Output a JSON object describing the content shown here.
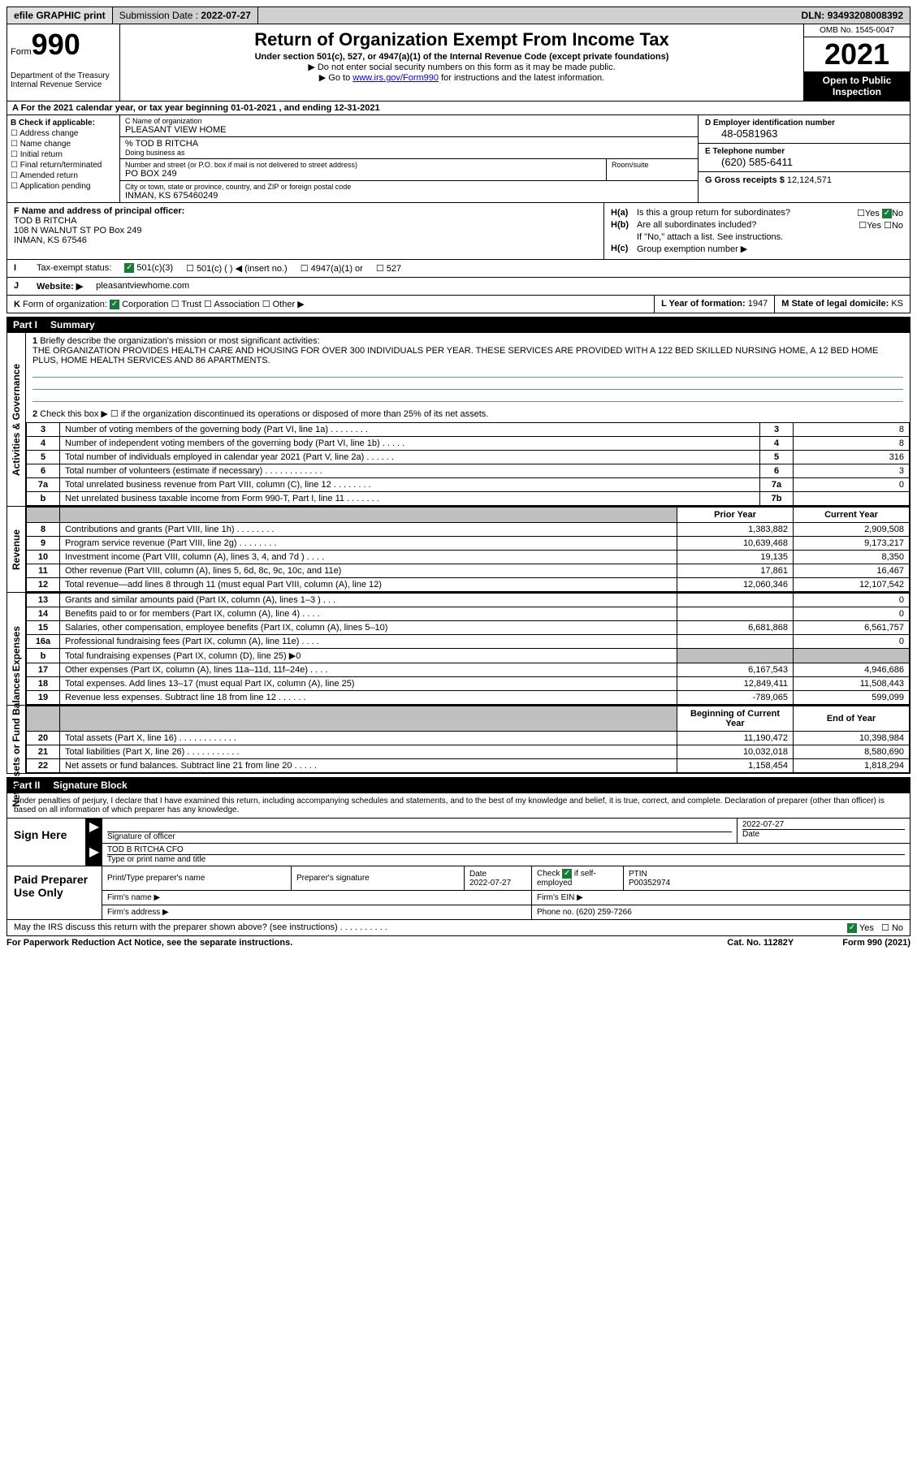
{
  "topbar": {
    "efile": "efile GRAPHIC print",
    "submission_label": "Submission Date :",
    "submission_date": "2022-07-27",
    "dln_label": "DLN:",
    "dln": "93493208008392"
  },
  "header": {
    "form_word": "Form",
    "form_num": "990",
    "dept": "Department of the Treasury\nInternal Revenue Service",
    "title": "Return of Organization Exempt From Income Tax",
    "sub1": "Under section 501(c), 527, or 4947(a)(1) of the Internal Revenue Code (except private foundations)",
    "sub2": "▶ Do not enter social security numbers on this form as it may be made public.",
    "sub3_pre": "▶ Go to ",
    "sub3_link": "www.irs.gov/Form990",
    "sub3_post": " for instructions and the latest information.",
    "omb": "OMB No. 1545-0047",
    "year": "2021",
    "inspect": "Open to Public Inspection"
  },
  "rowA": "A For the 2021 calendar year, or tax year beginning 01-01-2021   , and ending 12-31-2021",
  "sectionB": {
    "label": "B Check if applicable:",
    "opts": [
      "Address change",
      "Name change",
      "Initial return",
      "Final return/terminated",
      "Amended return",
      "Application pending"
    ]
  },
  "sectionC": {
    "name_label": "C Name of organization",
    "name": "PLEASANT VIEW HOME",
    "care_of": "% TOD B RITCHA",
    "dba_label": "Doing business as",
    "street_label": "Number and street (or P.O. box if mail is not delivered to street address)",
    "street": "PO BOX 249",
    "room_label": "Room/suite",
    "city_label": "City or town, state or province, country, and ZIP or foreign postal code",
    "city": "INMAN, KS  675460249"
  },
  "sectionD": {
    "ein_label": "D Employer identification number",
    "ein": "48-0581963",
    "phone_label": "E Telephone number",
    "phone": "(620) 585-6411",
    "gross_label": "G Gross receipts $",
    "gross": "12,124,571"
  },
  "sectionF": {
    "label": "F Name and address of principal officer:",
    "name": "TOD B RITCHA",
    "addr1": "108 N WALNUT ST PO Box 249",
    "addr2": "INMAN, KS  67546"
  },
  "sectionH": {
    "ha_label": "H(a)",
    "ha_text": "Is this a group return for subordinates?",
    "ha_yes": "Yes",
    "ha_no": "No",
    "hb_label": "H(b)",
    "hb_text": "Are all subordinates included?",
    "hb_note": "If \"No,\" attach a list. See instructions.",
    "hc_label": "H(c)",
    "hc_text": "Group exemption number ▶"
  },
  "rowI": {
    "lead": "I",
    "label": "Tax-exempt status:",
    "o1": "501(c)(3)",
    "o2": "501(c) (   ) ◀ (insert no.)",
    "o3": "4947(a)(1) or",
    "o4": "527"
  },
  "rowJ": {
    "lead": "J",
    "label": "Website: ▶",
    "val": "pleasantviewhome.com"
  },
  "rowK": {
    "lead": "K",
    "label": "Form of organization:",
    "o1": "Corporation",
    "o2": "Trust",
    "o3": "Association",
    "o4": "Other ▶",
    "l_label": "L Year of formation:",
    "l_val": "1947",
    "m_label": "M State of legal domicile:",
    "m_val": "KS"
  },
  "part1": {
    "part": "Part I",
    "title": "Summary",
    "q1_label": "1",
    "q1_text": "Briefly describe the organization's mission or most significant activities:",
    "q1_val": "THE ORGANIZATION PROVIDES HEALTH CARE AND HOUSING FOR OVER 300 INDIVIDUALS PER YEAR. THESE SERVICES ARE PROVIDED WITH A 122 BED SKILLED NURSING HOME, A 12 BED HOME PLUS, HOME HEALTH SERVICES AND 86 APARTMENTS.",
    "q2_text": "Check this box ▶ ☐  if the organization discontinued its operations or disposed of more than 25% of its net assets.",
    "governance_rows": [
      {
        "n": "3",
        "d": "Number of voting members of the governing body (Part VI, line 1a)   .    .    .    .    .    .    .    .",
        "box": "3",
        "v": "8"
      },
      {
        "n": "4",
        "d": "Number of independent voting members of the governing body (Part VI, line 1b)   .    .    .    .    .",
        "box": "4",
        "v": "8"
      },
      {
        "n": "5",
        "d": "Total number of individuals employed in calendar year 2021 (Part V, line 2a)   .    .    .    .    .    .",
        "box": "5",
        "v": "316"
      },
      {
        "n": "6",
        "d": "Total number of volunteers (estimate if necessary)   .    .    .    .    .    .    .    .    .    .    .    .",
        "box": "6",
        "v": "3"
      },
      {
        "n": "7a",
        "d": "Total unrelated business revenue from Part VIII, column (C), line 12   .    .    .    .    .    .    .    .",
        "box": "7a",
        "v": "0"
      },
      {
        "n": "b",
        "d": "Net unrelated business taxable income from Form 990-T, Part I, line 11   .    .    .    .    .    .    .",
        "box": "7b",
        "v": ""
      }
    ],
    "two_col_headers": {
      "prior": "Prior Year",
      "current": "Current Year"
    },
    "revenue_rows": [
      {
        "n": "8",
        "d": "Contributions and grants (Part VIII, line 1h)   .    .    .    .    .    .    .    .",
        "p": "1,383,882",
        "c": "2,909,508"
      },
      {
        "n": "9",
        "d": "Program service revenue (Part VIII, line 2g)   .    .    .    .    .    .    .    .",
        "p": "10,639,468",
        "c": "9,173,217"
      },
      {
        "n": "10",
        "d": "Investment income (Part VIII, column (A), lines 3, 4, and 7d )   .    .    .    .",
        "p": "19,135",
        "c": "8,350"
      },
      {
        "n": "11",
        "d": "Other revenue (Part VIII, column (A), lines 5, 6d, 8c, 9c, 10c, and 11e)",
        "p": "17,861",
        "c": "16,467"
      },
      {
        "n": "12",
        "d": "Total revenue—add lines 8 through 11 (must equal Part VIII, column (A), line 12)",
        "p": "12,060,346",
        "c": "12,107,542"
      }
    ],
    "expense_rows": [
      {
        "n": "13",
        "d": "Grants and similar amounts paid (Part IX, column (A), lines 1–3 )   .    .    .",
        "p": "",
        "c": "0"
      },
      {
        "n": "14",
        "d": "Benefits paid to or for members (Part IX, column (A), line 4)   .    .    .    .",
        "p": "",
        "c": "0"
      },
      {
        "n": "15",
        "d": "Salaries, other compensation, employee benefits (Part IX, column (A), lines 5–10)",
        "p": "6,681,868",
        "c": "6,561,757"
      },
      {
        "n": "16a",
        "d": "Professional fundraising fees (Part IX, column (A), line 11e)   .    .    .    .",
        "p": "",
        "c": "0"
      },
      {
        "n": "b",
        "d": "Total fundraising expenses (Part IX, column (D), line 25) ▶0",
        "p": "shade",
        "c": "shade"
      },
      {
        "n": "17",
        "d": "Other expenses (Part IX, column (A), lines 11a–11d, 11f–24e)   .    .    .    .",
        "p": "6,167,543",
        "c": "4,946,686"
      },
      {
        "n": "18",
        "d": "Total expenses. Add lines 13–17 (must equal Part IX, column (A), line 25)",
        "p": "12,849,411",
        "c": "11,508,443"
      },
      {
        "n": "19",
        "d": "Revenue less expenses. Subtract line 18 from line 12   .    .    .    .    .    .",
        "p": "-789,065",
        "c": "599,099"
      }
    ],
    "balance_headers": {
      "begin": "Beginning of Current Year",
      "end": "End of Year"
    },
    "balance_rows": [
      {
        "n": "20",
        "d": "Total assets (Part X, line 16)   .    .    .    .    .    .    .    .    .    .    .    .",
        "p": "11,190,472",
        "c": "10,398,984"
      },
      {
        "n": "21",
        "d": "Total liabilities (Part X, line 26)   .    .    .    .    .    .    .    .    .    .    .",
        "p": "10,032,018",
        "c": "8,580,690"
      },
      {
        "n": "22",
        "d": "Net assets or fund balances. Subtract line 21 from line 20   .    .    .    .    .",
        "p": "1,158,454",
        "c": "1,818,294"
      }
    ],
    "side_labels": {
      "gov": "Activities & Governance",
      "rev": "Revenue",
      "exp": "Expenses",
      "bal": "Net Assets or Fund Balances"
    }
  },
  "part2": {
    "part": "Part II",
    "title": "Signature Block",
    "declare": "Under penalties of perjury, I declare that I have examined this return, including accompanying schedules and statements, and to the best of my knowledge and belief, it is true, correct, and complete. Declaration of preparer (other than officer) is based on all information of which preparer has any knowledge.",
    "sign_here": "Sign Here",
    "sig_label": "Signature of officer",
    "sig_date": "2022-07-27",
    "date_label": "Date",
    "officer_name": "TOD B RITCHA CFO",
    "officer_label": "Type or print name and title",
    "paid_prep": "Paid Preparer Use Only",
    "prep_name_label": "Print/Type preparer's name",
    "prep_sig_label": "Preparer's signature",
    "prep_date_label": "Date",
    "prep_date": "2022-07-27",
    "prep_check_label": "Check",
    "prep_check_if": "if self-employed",
    "ptin_label": "PTIN",
    "ptin": "P00352974",
    "firm_name_label": "Firm's name    ▶",
    "firm_ein_label": "Firm's EIN ▶",
    "firm_addr_label": "Firm's address ▶",
    "firm_phone_label": "Phone no.",
    "firm_phone": "(620) 259-7266",
    "discuss": "May the IRS discuss this return with the preparer shown above? (see instructions)   .    .    .    .    .    .    .    .    .    .",
    "discuss_yes": "Yes",
    "discuss_no": "No"
  },
  "footer": {
    "paperwork": "For Paperwork Reduction Act Notice, see the separate instructions.",
    "cat": "Cat. No. 11282Y",
    "form": "Form 990 (2021)"
  }
}
